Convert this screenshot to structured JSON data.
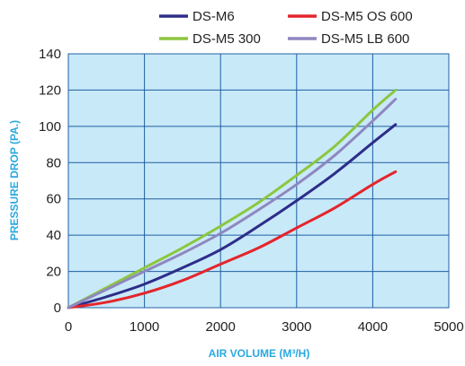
{
  "chart_data": {
    "type": "line",
    "title": "",
    "xlabel": "AIR VOLUME (M³/H)",
    "ylabel": "PRESSURE  DROP (PA.)",
    "xlim": [
      0,
      5000
    ],
    "ylim": [
      0,
      140
    ],
    "x_ticks": [
      "0",
      "1000",
      "2000",
      "3000",
      "4000",
      "5000"
    ],
    "y_ticks": [
      "0",
      "20",
      "40",
      "60",
      "80",
      "100",
      "120",
      "140"
    ],
    "grid": true,
    "legend_position": "top",
    "plot_background": "#c8e9f8",
    "grid_color": "#1f5fa3",
    "series": [
      {
        "name": "DS-M6",
        "color": "#2e2d8a",
        "x": [
          0,
          500,
          1000,
          1500,
          2000,
          2500,
          3000,
          3500,
          4000,
          4300
        ],
        "y": [
          0,
          6,
          13,
          22,
          32,
          45,
          59,
          74,
          91,
          101
        ]
      },
      {
        "name": "DS-M5 300",
        "color": "#8dc63f",
        "x": [
          0,
          500,
          1000,
          1500,
          2000,
          2500,
          3000,
          3500,
          4000,
          4300
        ],
        "y": [
          0,
          11,
          22,
          33,
          45,
          58,
          73,
          89,
          109,
          120
        ]
      },
      {
        "name": "DS-M5 OS 600",
        "color": "#e4252b",
        "x": [
          0,
          500,
          1000,
          1500,
          2000,
          2500,
          3000,
          3500,
          4000,
          4300
        ],
        "y": [
          0,
          3,
          8,
          15,
          24,
          33,
          44,
          55,
          68,
          75
        ]
      },
      {
        "name": "DS-M5 LB 600",
        "color": "#8f87c1",
        "x": [
          0,
          500,
          1000,
          1500,
          2000,
          2500,
          3000,
          3500,
          4000,
          4300
        ],
        "y": [
          0,
          10,
          20,
          30,
          41,
          54,
          68,
          84,
          103,
          115
        ]
      }
    ]
  }
}
